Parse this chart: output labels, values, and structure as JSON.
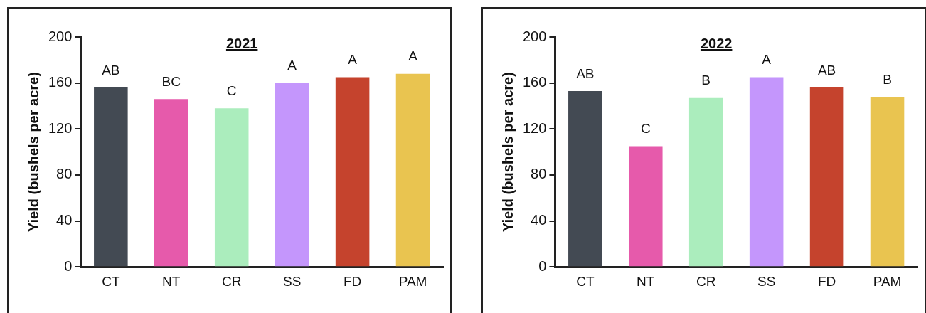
{
  "chart_data": [
    {
      "type": "bar",
      "title": "2021",
      "ylabel": "Yield (bushels per acre)",
      "categories": [
        "CT",
        "NT",
        "CR",
        "SS",
        "FD",
        "PAM"
      ],
      "values": [
        156,
        146,
        138,
        160,
        165,
        168
      ],
      "colors": [
        "#434a53",
        "#e65aab",
        "#abedbd",
        "#c496fc",
        "#c5432d",
        "#e9c450"
      ],
      "ylim": [
        0,
        200
      ],
      "yticks": [
        0,
        40,
        80,
        120,
        160,
        200
      ],
      "annotations": [
        {
          "text": "AB",
          "x": "CT",
          "y": 156
        },
        {
          "text": "BC",
          "x": "NT",
          "y": 146
        },
        {
          "text": "C",
          "x": "CR",
          "y": 138
        },
        {
          "text": "A",
          "x": "SS",
          "y": 160
        },
        {
          "text": "A",
          "x": "FD",
          "y": 165
        },
        {
          "text": "A",
          "x": "PAM",
          "y": 168
        }
      ]
    },
    {
      "type": "bar",
      "title": "2022",
      "ylabel": "Yield (bushels per acre)",
      "categories": [
        "CT",
        "NT",
        "CR",
        "SS",
        "FD",
        "PAM"
      ],
      "values": [
        153,
        105,
        147,
        165,
        156,
        148
      ],
      "colors": [
        "#434a53",
        "#e65aab",
        "#abedbd",
        "#c496fc",
        "#c5432d",
        "#e9c450"
      ],
      "ylim": [
        0,
        200
      ],
      "yticks": [
        0,
        40,
        80,
        120,
        160,
        200
      ],
      "annotations": [
        {
          "text": "AB",
          "x": "CT",
          "y": 153
        },
        {
          "text": "C",
          "x": "NT",
          "y": 105
        },
        {
          "text": "B",
          "x": "CR",
          "y": 147
        },
        {
          "text": "A",
          "x": "SS",
          "y": 165
        },
        {
          "text": "AB",
          "x": "FD",
          "y": 156
        },
        {
          "text": "B",
          "x": "PAM",
          "y": 148
        }
      ]
    }
  ]
}
